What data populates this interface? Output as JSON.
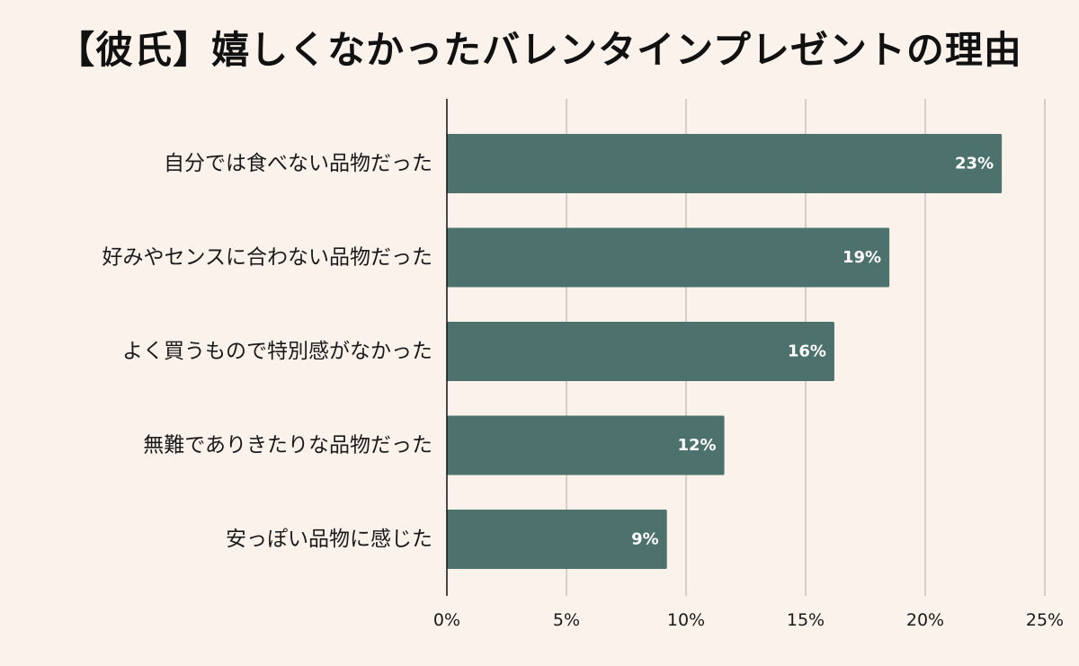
{
  "chart_data": {
    "type": "bar",
    "orientation": "horizontal",
    "title": "【彼氏】嬉しくなかったバレンタインプレゼントの理由",
    "xlabel": "",
    "ylabel": "",
    "categories": [
      "自分では食べない品物だった",
      "好みやセンスに合わない品物だった",
      "よく買うもので特別感がなかった",
      "無難でありきたりな品物だった",
      "安っぽい品物に感じた"
    ],
    "values": [
      23.2,
      18.5,
      16.2,
      11.6,
      9.2
    ],
    "data_labels": [
      "23%",
      "19%",
      "16%",
      "12%",
      "9%"
    ],
    "xlim": [
      0,
      25
    ],
    "xticks": [
      0,
      5,
      10,
      15,
      20,
      25
    ],
    "xtick_labels": [
      "0%",
      "5%",
      "10%",
      "15%",
      "20%",
      "25%"
    ],
    "grid": "vertical",
    "legend": "none",
    "bar_color": "#4d716c",
    "background_color": "#fbf2ec",
    "gridline_color": "#c9c2bd"
  }
}
